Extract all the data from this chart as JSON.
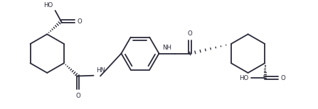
{
  "bg_color": "#ffffff",
  "line_color": "#2a2a3a",
  "lw": 1.3,
  "figsize": [
    4.47,
    1.54
  ],
  "dpi": 100,
  "xlim": [
    0,
    10.5
  ],
  "ylim": [
    -0.2,
    3.8
  ],
  "font_size": 6.2,
  "font_color": "#2a2a3a"
}
